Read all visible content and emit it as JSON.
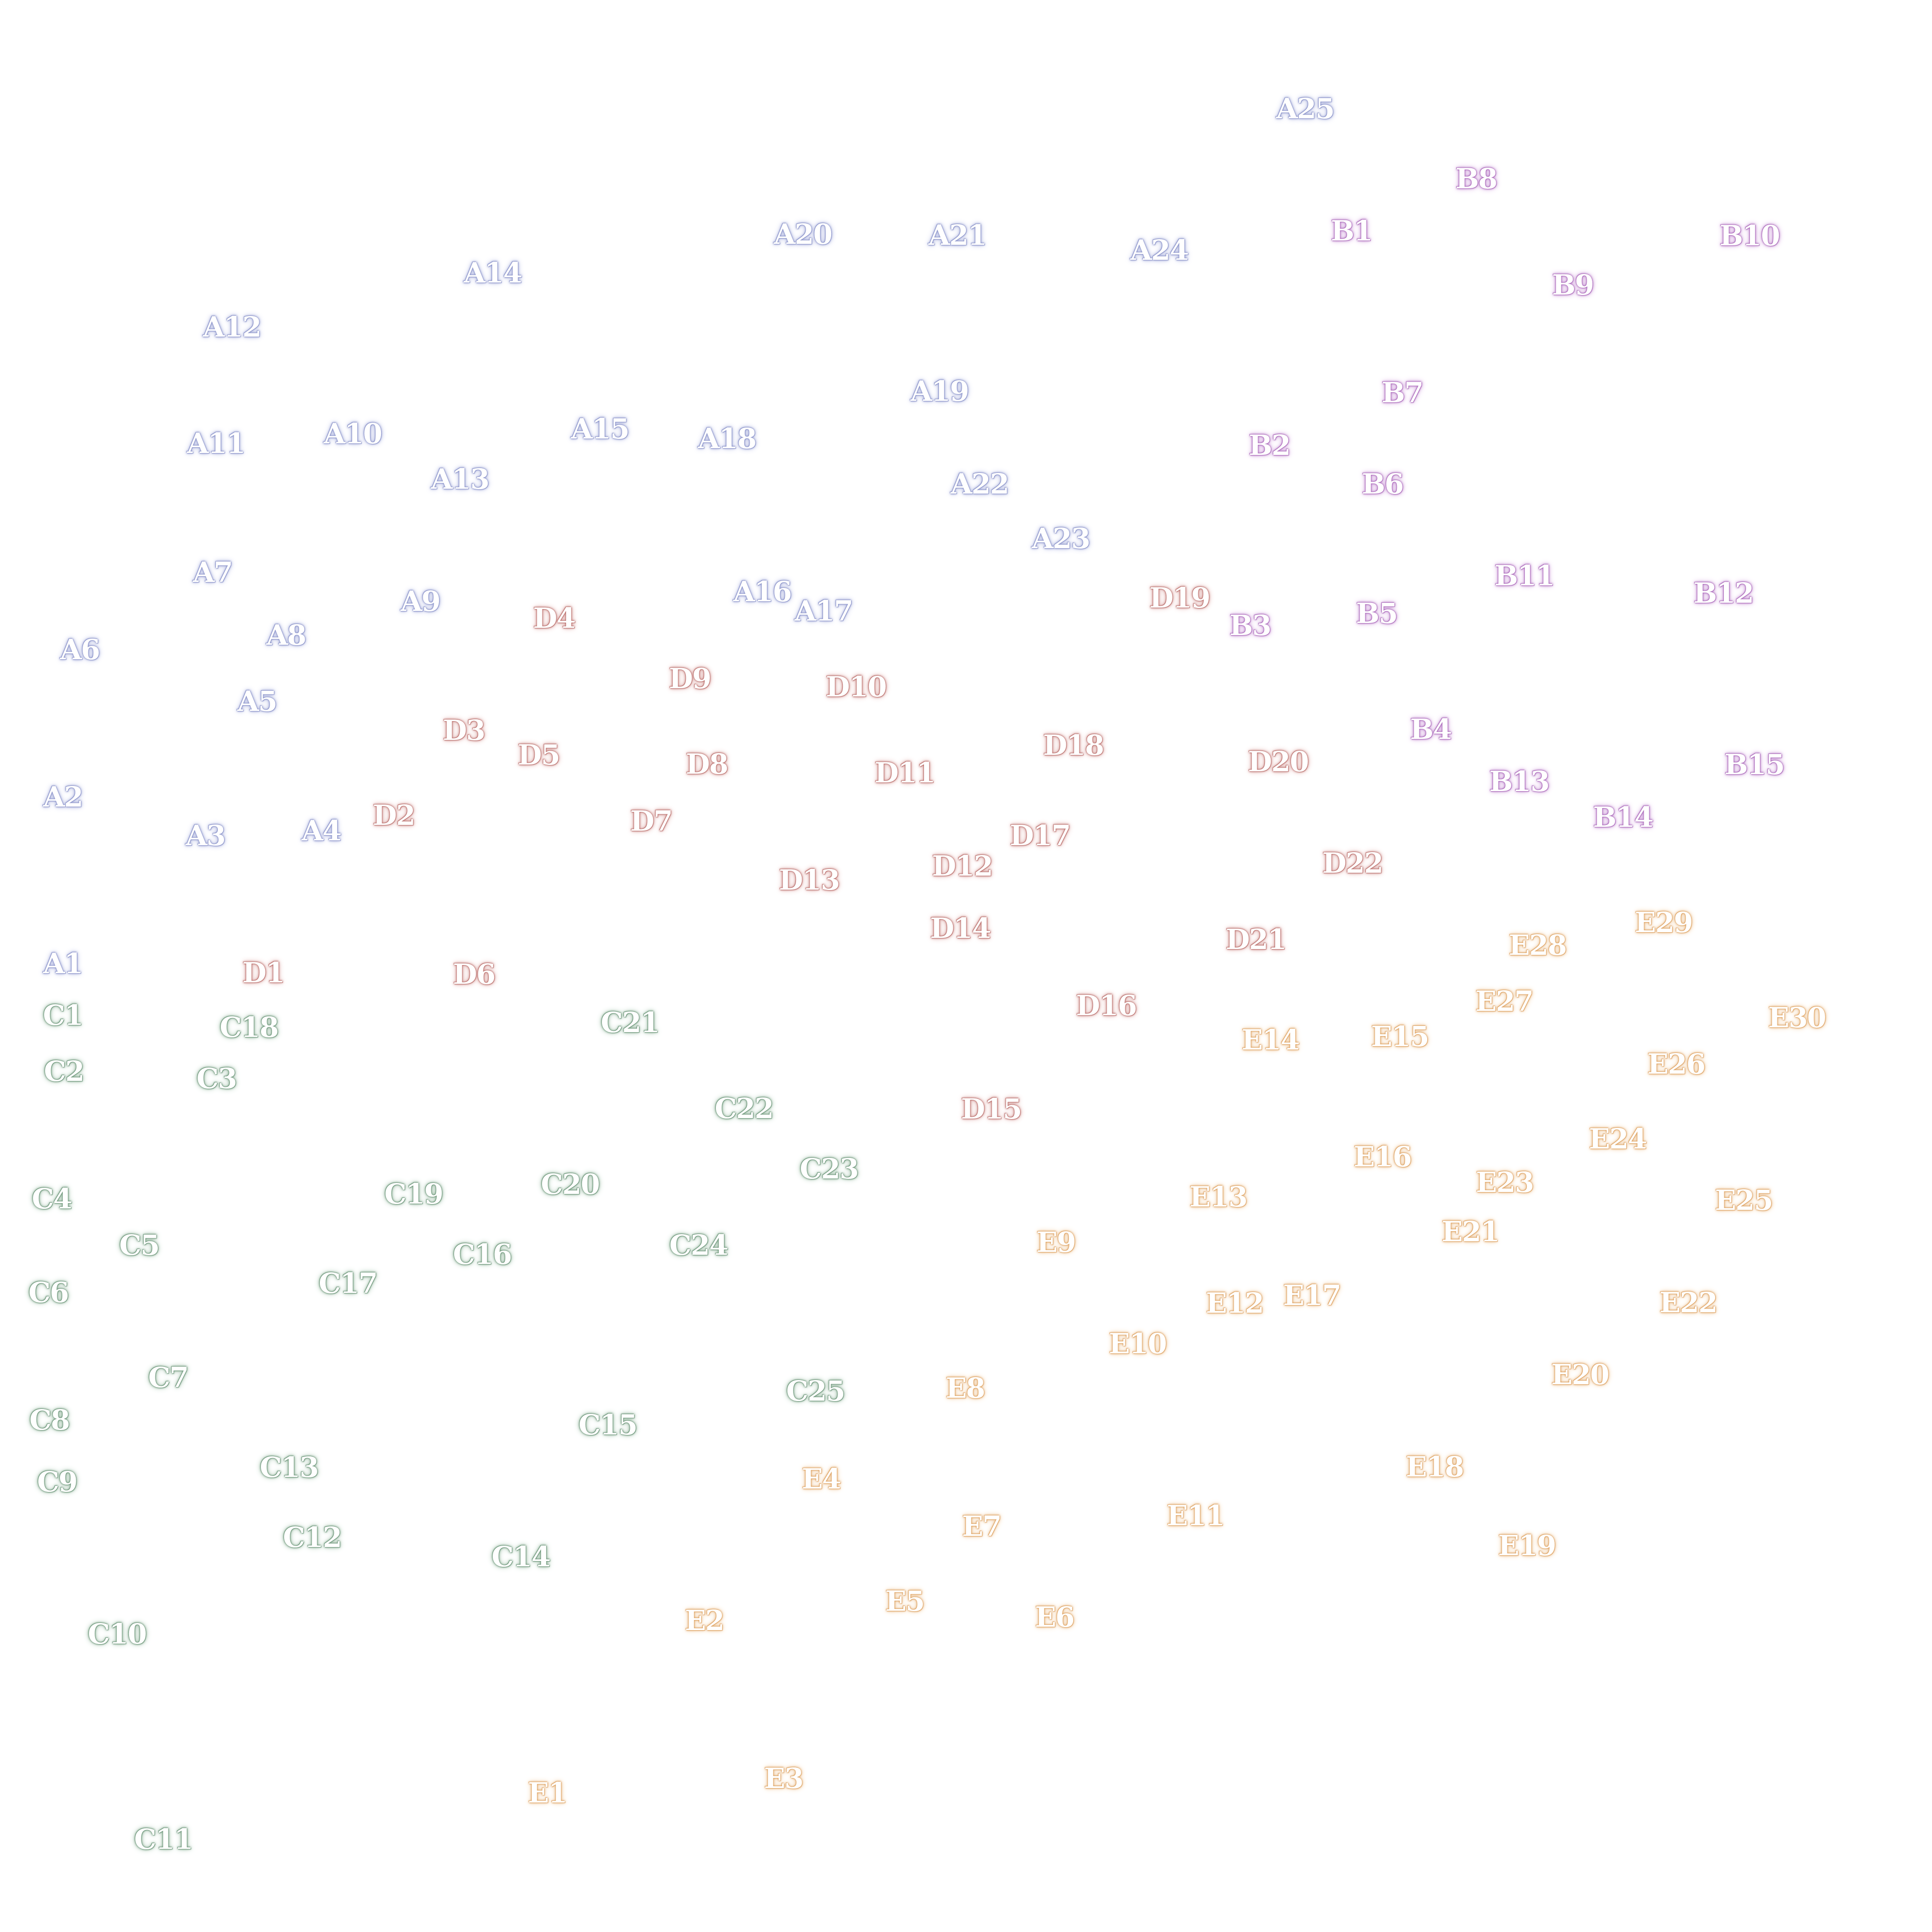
{
  "groups": {
    "A": {
      "color": "#8a92c8",
      "labels": [
        "A1",
        "A2",
        "A3",
        "A4",
        "A5",
        "A6",
        "A7",
        "A8",
        "A9",
        "A10",
        "A11",
        "A12",
        "A13",
        "A14",
        "A15",
        "A16",
        "A17",
        "A18",
        "A19",
        "A20",
        "A21",
        "A22",
        "A23",
        "A24",
        "A25"
      ]
    },
    "B": {
      "color": "#a868b8",
      "labels": [
        "B1",
        "B2",
        "B3",
        "B4",
        "B5",
        "B6",
        "B7",
        "B8",
        "B9",
        "B10",
        "B11",
        "B12",
        "B13",
        "B14",
        "B15"
      ]
    },
    "C": {
      "color": "#6a957a",
      "labels": [
        "C1",
        "C2",
        "C3",
        "C4",
        "C5",
        "C6",
        "C7",
        "C8",
        "C9",
        "C10",
        "C11",
        "C12",
        "C13",
        "C14",
        "C15",
        "C16",
        "C17",
        "C18",
        "C19",
        "C20",
        "C21",
        "C22",
        "C23",
        "C24",
        "C25"
      ]
    },
    "D": {
      "color": "#b86e6a",
      "labels": [
        "D1",
        "D2",
        "D3",
        "D4",
        "D5",
        "D6",
        "D7",
        "D8",
        "D9",
        "D10",
        "D11",
        "D12",
        "D13",
        "D14",
        "D15",
        "D16",
        "D17",
        "D18",
        "D19",
        "D20",
        "D21",
        "D22"
      ]
    },
    "E": {
      "color": "#dda060",
      "labels": [
        "E1",
        "E2",
        "E3",
        "E4",
        "E5",
        "E6",
        "E7",
        "E8",
        "E9",
        "E10",
        "E11",
        "E12",
        "E13",
        "E14",
        "E15",
        "E16",
        "E17",
        "E18",
        "E19",
        "E20",
        "E21",
        "E22",
        "E23",
        "E24",
        "E25",
        "E26",
        "E27",
        "E28",
        "E29",
        "E30"
      ]
    }
  }
}
